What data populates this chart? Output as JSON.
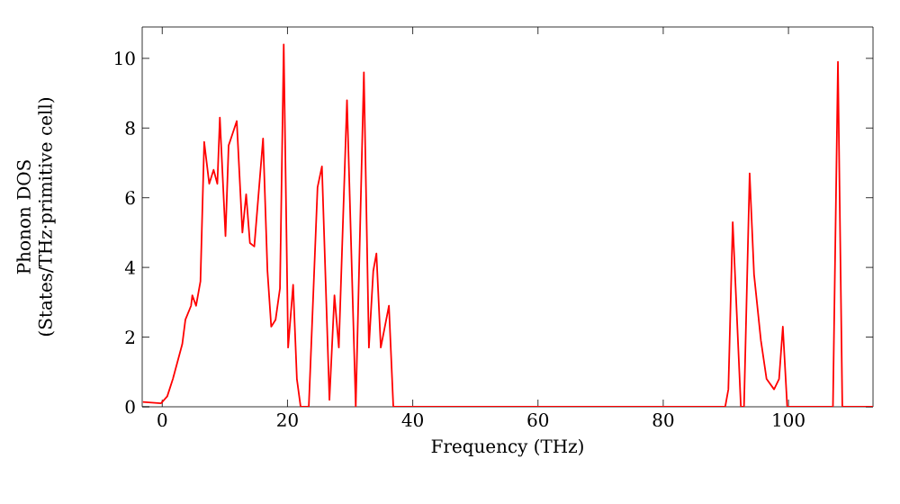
{
  "chart_data": {
    "type": "line",
    "xlabel": "Frequency (THz)",
    "ylabel": "Phonon DOS (States/THz·primitive cell)",
    "xlim": [
      -3.2,
      113.5
    ],
    "ylim": [
      0,
      10.9
    ],
    "xticks": [
      0,
      20,
      40,
      60,
      80,
      100
    ],
    "yticks": [
      0,
      2,
      4,
      6,
      8,
      10
    ],
    "grid": false,
    "marker": "none",
    "line_style": "solid",
    "series": [
      {
        "color": "#ff0000",
        "x": [
          -3.1,
          -0.2,
          0.8,
          1.7,
          3.2,
          3.7,
          4.6,
          4.8,
          5.4,
          6.1,
          6.7,
          7.5,
          8.2,
          8.8,
          9.2,
          10.1,
          10.6,
          11.9,
          12.8,
          13.4,
          14.0,
          14.7,
          16.1,
          16.8,
          17.4,
          18.1,
          18.8,
          19.4,
          20.1,
          20.9,
          21.5,
          22.1,
          23.4,
          24.8,
          25.5,
          26.7,
          27.5,
          28.2,
          29.5,
          30.9,
          32.2,
          33.0,
          33.7,
          34.2,
          34.9,
          36.2,
          36.9,
          83.3,
          89.9,
          90.4,
          91.1,
          92.4,
          92.9,
          93.8,
          94.5,
          95.6,
          96.5,
          97.7,
          98.5,
          99.1,
          99.8,
          107.1,
          107.9,
          108.6,
          113.5
        ],
        "values": [
          0.14,
          0.1,
          0.3,
          0.8,
          1.8,
          2.5,
          2.9,
          3.2,
          2.9,
          3.6,
          7.6,
          6.4,
          6.8,
          6.4,
          8.3,
          4.9,
          7.5,
          8.2,
          5.0,
          6.1,
          4.7,
          4.6,
          7.7,
          3.9,
          2.3,
          2.5,
          3.4,
          10.4,
          1.7,
          3.5,
          0.8,
          0,
          0,
          6.3,
          6.9,
          0.2,
          3.2,
          1.7,
          8.8,
          0,
          9.6,
          1.7,
          3.9,
          4.4,
          1.7,
          2.9,
          0,
          0,
          0,
          0.5,
          5.3,
          0,
          0,
          6.7,
          3.8,
          1.9,
          0.8,
          0.5,
          0.8,
          2.3,
          0,
          0,
          9.9,
          0,
          0
        ]
      }
    ]
  }
}
